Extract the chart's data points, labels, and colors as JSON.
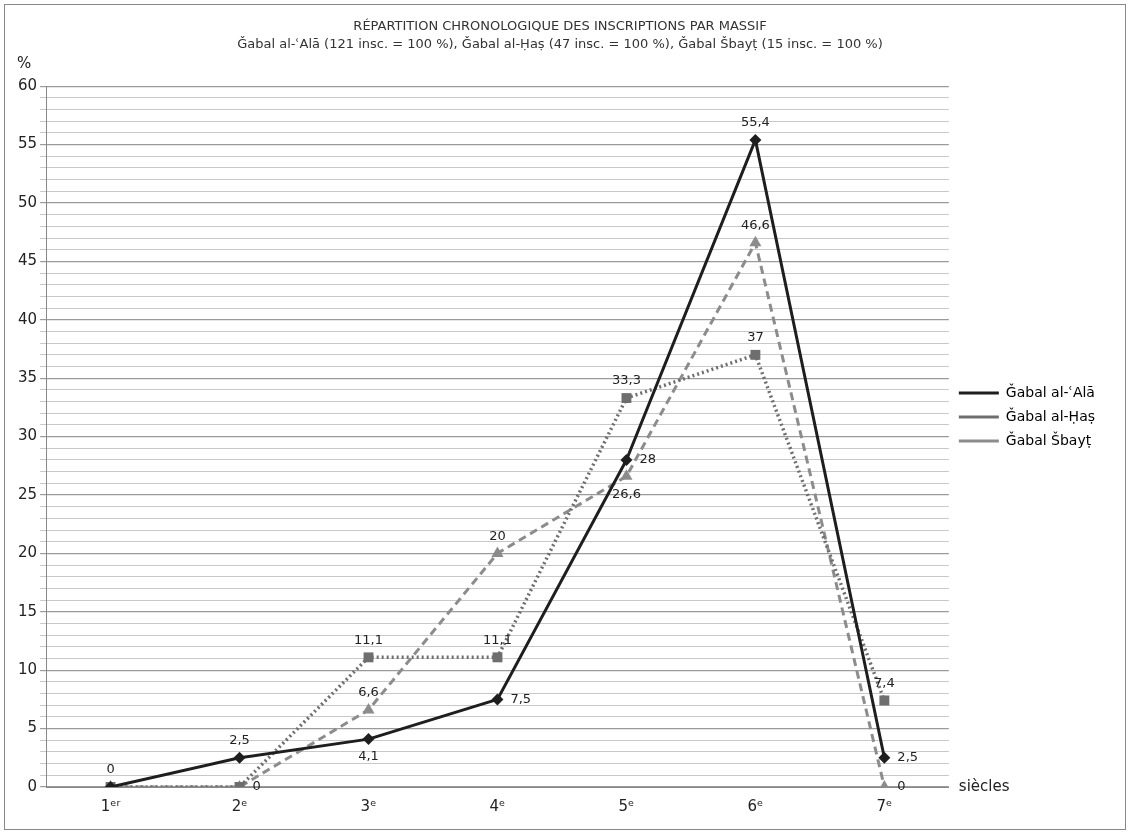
{
  "chart_data": {
    "type": "line",
    "title": "RÉPARTITION CHRONOLOGIQUE DES INSCRIPTIONS PAR MASSIF",
    "subtitle": "Ǧabal al-ʿAlā (121 insc. = 100 %), Ǧabal al-Ḥaṣ (47 insc. = 100 %), Ǧabal Šbayṭ (15 insc. = 100 %)",
    "xlabel": "siècles",
    "ylabel": "%",
    "categories": [
      "1ᵉʳ",
      "2ᵉ",
      "3ᵉ",
      "4ᵉ",
      "5ᵉ",
      "6ᵉ",
      "7ᵉ"
    ],
    "series": [
      {
        "name": "Ǧabal al-ʿAlā",
        "color": "#1e1e1e",
        "marker": "diamond",
        "line_style": "solid",
        "values": [
          0,
          2.5,
          4.1,
          7.5,
          28,
          55.4,
          2.5
        ],
        "value_labels": [
          "0",
          "2,5",
          "4,1",
          "7,5",
          "28",
          "55,4",
          "2,5"
        ]
      },
      {
        "name": "Ǧabal al-Ḥaṣ",
        "color": "#6e6e6e",
        "marker": "square",
        "line_style": "dotted",
        "values": [
          0,
          0,
          11.1,
          11.1,
          33.3,
          37,
          7.4
        ],
        "value_labels": [
          null,
          "0",
          "11,1",
          "11,1",
          "33,3",
          "37",
          "7,4"
        ]
      },
      {
        "name": "Ǧabal Šbayṭ",
        "color": "#8c8c8c",
        "marker": "triangle",
        "line_style": "dashed",
        "values": [
          0,
          0,
          6.6,
          20,
          26.6,
          46.6,
          0
        ],
        "value_labels": [
          null,
          null,
          "6,6",
          "20",
          "26,6",
          "46,6",
          "0"
        ]
      }
    ],
    "ylim": [
      0,
      60
    ],
    "yticks": [
      0,
      {
        "value": 1,
        "label": null
      },
      {
        "value": 2,
        "label": null
      },
      {
        "value": 3,
        "label": null
      },
      {
        "value": 4,
        "label": null
      },
      5,
      {
        "value": 6,
        "label": null
      },
      {
        "value": 7,
        "label": null
      },
      {
        "value": 8,
        "label": null
      },
      {
        "value": 9,
        "label": null
      },
      10,
      {
        "value": 11,
        "label": null
      },
      {
        "value": 12,
        "label": null
      },
      {
        "value": 13,
        "label": null
      },
      {
        "value": 14,
        "label": null
      },
      15,
      {
        "value": 16,
        "label": null
      },
      {
        "value": 17,
        "label": null
      },
      {
        "value": 18,
        "label": null
      },
      {
        "value": 19,
        "label": null
      },
      20,
      {
        "value": 21,
        "label": null
      },
      {
        "value": 22,
        "label": null
      },
      {
        "value": 23,
        "label": null
      },
      {
        "value": 24,
        "label": null
      },
      25,
      {
        "value": 26,
        "label": null
      },
      {
        "value": 27,
        "label": null
      },
      {
        "value": 28,
        "label": null
      },
      {
        "value": 29,
        "label": null
      },
      30,
      {
        "value": 31,
        "label": null
      },
      {
        "value": 32,
        "label": null
      },
      {
        "value": 33,
        "label": null
      },
      {
        "value": 34,
        "label": null
      },
      35,
      {
        "value": 36,
        "label": null
      },
      {
        "value": 37,
        "label": null
      },
      {
        "value": 38,
        "label": null
      },
      {
        "value": 39,
        "label": null
      },
      40,
      {
        "value": 41,
        "label": null
      },
      {
        "value": 42,
        "label": null
      },
      {
        "value": 43,
        "label": null
      },
      {
        "value": 44,
        "label": null
      },
      45,
      {
        "value": 46,
        "label": null
      },
      {
        "value": 47,
        "label": null
      },
      {
        "value": 48,
        "label": null
      },
      {
        "value": 49,
        "label": null
      },
      50,
      {
        "value": 51,
        "label": null
      },
      {
        "value": 52,
        "label": null
      },
      {
        "value": 53,
        "label": null
      },
      {
        "value": 54,
        "label": null
      },
      55,
      {
        "value": 56,
        "label": null
      },
      {
        "value": 57,
        "label": null
      },
      {
        "value": 58,
        "label": null
      },
      {
        "value": 59,
        "label": null
      },
      60
    ],
    "grid": "y",
    "legend": "right"
  }
}
